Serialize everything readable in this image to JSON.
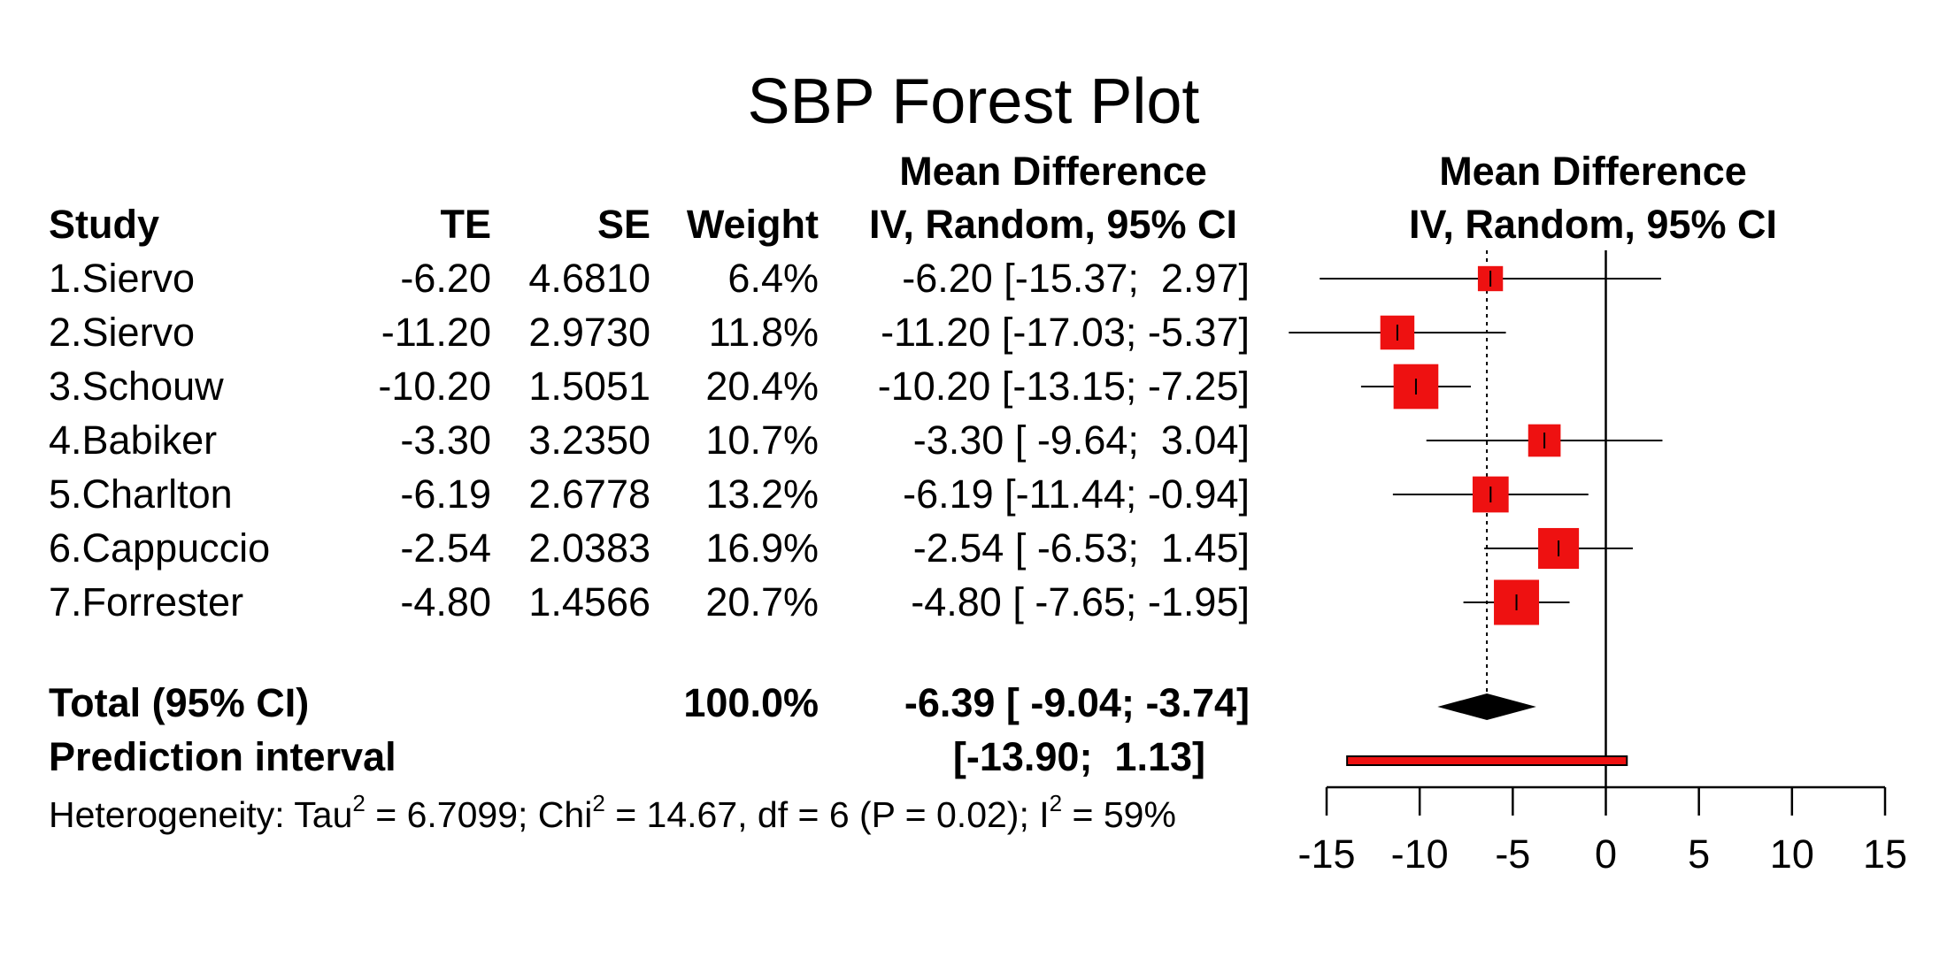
{
  "chart_data": {
    "type": "forest",
    "title": "SBP Forest Plot",
    "columns": {
      "study": "Study",
      "te": "TE",
      "se": "SE",
      "weight": "Weight",
      "ci_header_line1": "Mean Difference",
      "ci_header_line2": "IV, Random, 95% CI"
    },
    "plot_header_line1": "Mean Difference",
    "plot_header_line2": "IV, Random, 95% CI",
    "studies": [
      {
        "label": "1.Siervo",
        "te_text": "-6.20",
        "se_text": "4.6810",
        "weight_text": "6.4%",
        "ci_text": "-6.20 [-15.37;  2.97]",
        "te": -6.2,
        "lower": -15.37,
        "upper": 2.97,
        "weight": 6.4
      },
      {
        "label": "2.Siervo",
        "te_text": "-11.20",
        "se_text": "2.9730",
        "weight_text": "11.8%",
        "ci_text": "-11.20 [-17.03; -5.37]",
        "te": -11.2,
        "lower": -17.03,
        "upper": -5.37,
        "weight": 11.8
      },
      {
        "label": "3.Schouw",
        "te_text": "-10.20",
        "se_text": "1.5051",
        "weight_text": "20.4%",
        "ci_text": "-10.20 [-13.15; -7.25]",
        "te": -10.2,
        "lower": -13.15,
        "upper": -7.25,
        "weight": 20.4
      },
      {
        "label": "4.Babiker",
        "te_text": "-3.30",
        "se_text": "3.2350",
        "weight_text": "10.7%",
        "ci_text": "-3.30 [ -9.64;  3.04]",
        "te": -3.3,
        "lower": -9.64,
        "upper": 3.04,
        "weight": 10.7
      },
      {
        "label": "5.Charlton",
        "te_text": "-6.19",
        "se_text": "2.6778",
        "weight_text": "13.2%",
        "ci_text": "-6.19 [-11.44; -0.94]",
        "te": -6.19,
        "lower": -11.44,
        "upper": -0.94,
        "weight": 13.2
      },
      {
        "label": "6.Cappuccio",
        "te_text": "-2.54",
        "se_text": "2.0383",
        "weight_text": "16.9%",
        "ci_text": "-2.54 [ -6.53;  1.45]",
        "te": -2.54,
        "lower": -6.53,
        "upper": 1.45,
        "weight": 16.9
      },
      {
        "label": "7.Forrester",
        "te_text": "-4.80",
        "se_text": "1.4566",
        "weight_text": "20.7%",
        "ci_text": "-4.80 [ -7.65; -1.95]",
        "te": -4.8,
        "lower": -7.65,
        "upper": -1.95,
        "weight": 20.7
      }
    ],
    "total": {
      "label": "Total (95% CI)",
      "weight_text": "100.0%",
      "ci_text": "-6.39 [ -9.04; -3.74]",
      "te": -6.39,
      "lower": -9.04,
      "upper": -3.74
    },
    "prediction_interval": {
      "label": "Prediction interval",
      "ci_text": "[-13.90;  1.13]",
      "lower": -13.9,
      "upper": 1.13
    },
    "heterogeneity": {
      "prefix": "Heterogeneity: Tau",
      "tau_exp": "2",
      "tau_val": " = 6.7099; Chi",
      "chi_exp": "2",
      "chi_val": " = 14.67, df = 6 (P = 0.02); I",
      "i_exp": "2",
      "i_val": " = 59%"
    },
    "xlim": [
      -15,
      15
    ],
    "xticks": [
      -15,
      -10,
      -5,
      0,
      5,
      10,
      15
    ],
    "xtick_labels": [
      "-15",
      "-10",
      "-5",
      "0",
      "5",
      "10",
      "15"
    ],
    "null_line": 0,
    "colors": {
      "square": "#ee1111",
      "diamond": "#000000",
      "prediction_bar": "#ee1111",
      "lines": "#000000"
    }
  }
}
